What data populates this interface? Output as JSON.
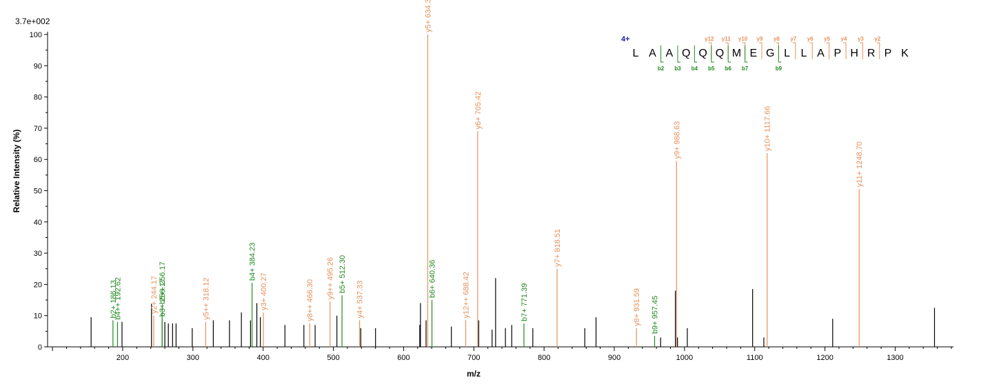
{
  "chart_data": {
    "type": "bar",
    "subtype": "mass-spectrum",
    "intensity_max_label": "3.7e+002",
    "xlabel": "m/z",
    "ylabel": "Relative  Intensity (%)",
    "xlim": [
      93,
      1383
    ],
    "ylim": [
      0,
      100
    ],
    "x_ticks": [
      200,
      300,
      400,
      500,
      600,
      700,
      800,
      900,
      1000,
      1100,
      1200,
      1300
    ],
    "y_ticks": [
      0,
      10,
      20,
      30,
      40,
      50,
      60,
      70,
      80,
      90,
      100
    ],
    "colors": {
      "unassigned": "#000000",
      "y_ion": "#e8905a",
      "b_ion": "#1f8a1f",
      "charge": "#1a1aa0",
      "sequence": "#000000"
    },
    "peaks": [
      {
        "mz": 155,
        "rel": 9.5,
        "ion": "none"
      },
      {
        "mz": 186.13,
        "rel": 8.5,
        "ion": "b",
        "label": "b2+ 186.13"
      },
      {
        "mz": 192.62,
        "rel": 8.0,
        "ion": "b",
        "label": "b4++ 192.62"
      },
      {
        "mz": 199,
        "rel": 8.0,
        "ion": "none"
      },
      {
        "mz": 241,
        "rel": 13.8,
        "ion": "none"
      },
      {
        "mz": 244.17,
        "rel": 10.0,
        "ion": "y",
        "label": "y2+ 244.17"
      },
      {
        "mz": 256.17,
        "rel": 9.0,
        "ion": "b",
        "label": "b3+ 256.17"
      },
      {
        "mz": 256.17,
        "rel": 13.0,
        "ion": "b",
        "label": "b5++ 256.17"
      },
      {
        "mz": 260,
        "rel": 8.0,
        "ion": "none"
      },
      {
        "mz": 265,
        "rel": 7.5,
        "ion": "none"
      },
      {
        "mz": 271,
        "rel": 7.5,
        "ion": "none"
      },
      {
        "mz": 276,
        "rel": 7.5,
        "ion": "none"
      },
      {
        "mz": 299,
        "rel": 6.0,
        "ion": "none"
      },
      {
        "mz": 318.12,
        "rel": 8.0,
        "ion": "y",
        "label": "y5++ 318.12"
      },
      {
        "mz": 329,
        "rel": 8.5,
        "ion": "none"
      },
      {
        "mz": 352,
        "rel": 8.5,
        "ion": "none"
      },
      {
        "mz": 369,
        "rel": 11.0,
        "ion": "none"
      },
      {
        "mz": 382,
        "rel": 8.5,
        "ion": "none"
      },
      {
        "mz": 384.23,
        "rel": 20.5,
        "ion": "b",
        "label": "b4+ 384.23"
      },
      {
        "mz": 391,
        "rel": 14.0,
        "ion": "none"
      },
      {
        "mz": 396,
        "rel": 9.5,
        "ion": "none"
      },
      {
        "mz": 400.27,
        "rel": 11.0,
        "ion": "y",
        "label": "y3+ 400.27"
      },
      {
        "mz": 431,
        "rel": 7.0,
        "ion": "none"
      },
      {
        "mz": 458,
        "rel": 7.0,
        "ion": "none"
      },
      {
        "mz": 466.3,
        "rel": 7.5,
        "ion": "y",
        "label": "y8++ 466.30"
      },
      {
        "mz": 474,
        "rel": 7.0,
        "ion": "none"
      },
      {
        "mz": 495.26,
        "rel": 14.5,
        "ion": "y",
        "label": "y9++ 495.26"
      },
      {
        "mz": 505,
        "rel": 10.0,
        "ion": "none"
      },
      {
        "mz": 512.3,
        "rel": 16.5,
        "ion": "b",
        "label": "b5+ 512.30"
      },
      {
        "mz": 537.33,
        "rel": 8.5,
        "ion": "y",
        "label": "y4+ 537.33"
      },
      {
        "mz": 539,
        "rel": 6.0,
        "ion": "none"
      },
      {
        "mz": 560,
        "rel": 6.0,
        "ion": "none"
      },
      {
        "mz": 623,
        "rel": 7.0,
        "ion": "none"
      },
      {
        "mz": 624,
        "rel": 14.0,
        "ion": "none"
      },
      {
        "mz": 632,
        "rel": 8.5,
        "ion": "none"
      },
      {
        "mz": 634.38,
        "rel": 100,
        "ion": "y",
        "label": "y5+ 634.38"
      },
      {
        "mz": 640.36,
        "rel": 15.0,
        "ion": "b",
        "label": "b6+ 640.36"
      },
      {
        "mz": 668,
        "rel": 6.5,
        "ion": "none"
      },
      {
        "mz": 688.42,
        "rel": 8.5,
        "ion": "y",
        "label": "y12++ 688.42"
      },
      {
        "mz": 705.42,
        "rel": 69.0,
        "ion": "y",
        "label": "y6+ 705.42"
      },
      {
        "mz": 707,
        "rel": 8.5,
        "ion": "none"
      },
      {
        "mz": 726,
        "rel": 5.5,
        "ion": "none"
      },
      {
        "mz": 731,
        "rel": 22.0,
        "ion": "none"
      },
      {
        "mz": 745,
        "rel": 6.0,
        "ion": "none"
      },
      {
        "mz": 754,
        "rel": 7.0,
        "ion": "none"
      },
      {
        "mz": 771.39,
        "rel": 7.5,
        "ion": "b",
        "label": "b7+ 771.39"
      },
      {
        "mz": 784,
        "rel": 6.0,
        "ion": "none"
      },
      {
        "mz": 818.51,
        "rel": 25.0,
        "ion": "y",
        "label": "y7+ 818.51"
      },
      {
        "mz": 858,
        "rel": 6.0,
        "ion": "none"
      },
      {
        "mz": 874,
        "rel": 9.5,
        "ion": "none"
      },
      {
        "mz": 931.59,
        "rel": 6.0,
        "ion": "y",
        "label": "y8+ 931.59"
      },
      {
        "mz": 957.45,
        "rel": 3.5,
        "ion": "b",
        "label": "b9+ 957.45"
      },
      {
        "mz": 966,
        "rel": 3.0,
        "ion": "none"
      },
      {
        "mz": 988.63,
        "rel": 59.5,
        "ion": "y",
        "label": "y9+ 988.63"
      },
      {
        "mz": 987,
        "rel": 18.0,
        "ion": "none"
      },
      {
        "mz": 990,
        "rel": 3.0,
        "ion": "none"
      },
      {
        "mz": 1004,
        "rel": 6.0,
        "ion": "none"
      },
      {
        "mz": 1097,
        "rel": 18.5,
        "ion": "none"
      },
      {
        "mz": 1113,
        "rel": 3.0,
        "ion": "none"
      },
      {
        "mz": 1117.66,
        "rel": 62.0,
        "ion": "y",
        "label": "y10+ 1117.66"
      },
      {
        "mz": 1211,
        "rel": 9.0,
        "ion": "none"
      },
      {
        "mz": 1248.7,
        "rel": 50.5,
        "ion": "y",
        "label": "y11+ 1248.70"
      },
      {
        "mz": 1356,
        "rel": 12.5,
        "ion": "none"
      }
    ],
    "peptide": {
      "charge": "4+",
      "sequence": [
        "L",
        "A",
        "A",
        "Q",
        "Q",
        "Q",
        "M",
        "E",
        "G",
        "L",
        "L",
        "A",
        "P",
        "H",
        "R",
        "P",
        "K"
      ],
      "y_marks": [
        {
          "after": 5,
          "label": "y12"
        },
        {
          "after": 6,
          "label": "y11"
        },
        {
          "after": 7,
          "label": "y10"
        },
        {
          "after": 8,
          "label": "y9"
        },
        {
          "after": 9,
          "label": "y8"
        },
        {
          "after": 10,
          "label": "y7"
        },
        {
          "after": 11,
          "label": "y6"
        },
        {
          "after": 12,
          "label": "y5"
        },
        {
          "after": 13,
          "label": "y4"
        },
        {
          "after": 14,
          "label": "y3"
        },
        {
          "after": 15,
          "label": "y2"
        }
      ],
      "b_marks": [
        {
          "after": 2,
          "label": "b2"
        },
        {
          "after": 3,
          "label": "b3"
        },
        {
          "after": 4,
          "label": "b4"
        },
        {
          "after": 5,
          "label": "b5"
        },
        {
          "after": 6,
          "label": "b6"
        },
        {
          "after": 7,
          "label": "b7"
        },
        {
          "after": 9,
          "label": "b9"
        }
      ]
    }
  }
}
